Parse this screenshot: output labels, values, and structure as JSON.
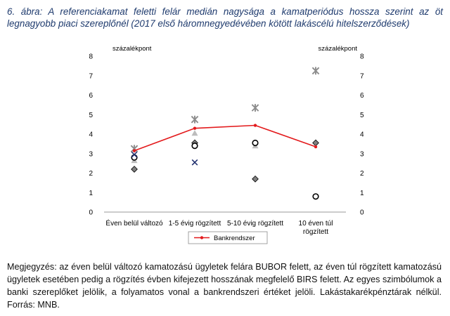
{
  "title": "6. ábra: A referenciakamat feletti felár medián nagysága a kamatperiódus hossza szerint az öt legnagyobb piaci szereplőnél (2017 első háromnegyedévében kötött lakáscélú hitelszerződések)",
  "note": "Megjegyzés: az éven belül változó kamatozású ügyletek felára BUBOR felett, az éven túl rögzített kamatozású ügyletek esetében pedig a rögzítés évben kifejezett hosszának megfelelő BIRS felett. Az egyes szimbólumok a banki szereplőket jelölik, a folyamatos vonal a bankrendszeri értéket jelöli. Lakástakarékpénztárak nélkül. Forrás: MNB.",
  "chart_data": {
    "type": "scatter",
    "categories": [
      "Éven belül változó",
      "1-5 évig rögzített",
      "5-10 évig rögzített",
      "10 éven túl rögzített"
    ],
    "category_lines": [
      [
        "Éven belül változó"
      ],
      [
        "1-5 évig rögzített"
      ],
      [
        "5-10 évig rögzített"
      ],
      [
        "10 éven túl",
        "rögzített"
      ]
    ],
    "ylabel_left": "százalékpont",
    "ylabel_right": "százalékpont",
    "ylim": [
      0,
      8
    ],
    "yticks": [
      0,
      1,
      2,
      3,
      4,
      5,
      6,
      7,
      8
    ],
    "grid": false,
    "legend_position": "bottom",
    "line_series": {
      "name": "Bankrendszer",
      "color": "#e31a1c",
      "values": [
        3.15,
        4.3,
        4.45,
        3.35
      ]
    },
    "marker_series": [
      {
        "marker": "star",
        "color": "#8c8c8c",
        "values": [
          3.25,
          4.75,
          5.35,
          7.25
        ]
      },
      {
        "marker": "triangle",
        "color": "#bdbdbd",
        "values": [
          2.65,
          4.05,
          3.4,
          null
        ]
      },
      {
        "marker": "diamond",
        "color": "#7f7f7f",
        "values": [
          2.2,
          3.55,
          1.7,
          3.55
        ]
      },
      {
        "marker": "circle",
        "color": "#000000",
        "values": [
          2.8,
          3.4,
          3.55,
          0.8
        ]
      },
      {
        "marker": "x",
        "color": "#1f2f6e",
        "values": [
          2.95,
          2.55,
          null,
          null
        ]
      }
    ]
  }
}
